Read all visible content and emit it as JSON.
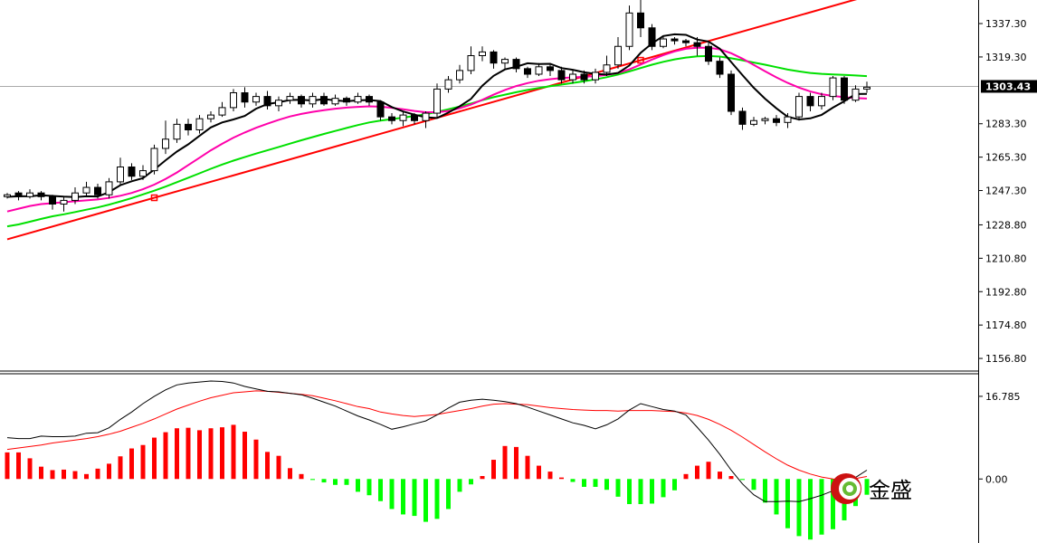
{
  "chart_data": [
    {
      "type": "candlestick",
      "title": "",
      "ylim": [
        1150,
        1350
      ],
      "yticks": [
        "1337.30",
        "1319.30",
        "1283.30",
        "1265.30",
        "1247.30",
        "1228.80",
        "1210.80",
        "1192.80",
        "1174.80",
        "1156.80"
      ],
      "ytick_values": [
        1337.3,
        1319.3,
        1283.3,
        1265.3,
        1247.3,
        1228.8,
        1210.8,
        1192.8,
        1174.8,
        1156.8
      ],
      "current_price": {
        "label": "1303.43",
        "value": 1303.43
      },
      "candles": [
        [
          1244,
          1245,
          1243,
          1246
        ],
        [
          1246,
          1244,
          1242,
          1247
        ],
        [
          1244,
          1246,
          1243,
          1248
        ],
        [
          1246,
          1244,
          1242,
          1247
        ],
        [
          1244,
          1240,
          1237,
          1245
        ],
        [
          1240,
          1242,
          1236,
          1244
        ],
        [
          1242,
          1246,
          1240,
          1249
        ],
        [
          1246,
          1249,
          1244,
          1252
        ],
        [
          1249,
          1245,
          1243,
          1251
        ],
        [
          1245,
          1252,
          1243,
          1254
        ],
        [
          1252,
          1260,
          1250,
          1265
        ],
        [
          1260,
          1255,
          1253,
          1262
        ],
        [
          1255,
          1258,
          1253,
          1261
        ],
        [
          1258,
          1270,
          1256,
          1272
        ],
        [
          1270,
          1275,
          1267,
          1285
        ],
        [
          1275,
          1283,
          1273,
          1286
        ],
        [
          1283,
          1280,
          1277,
          1286
        ],
        [
          1280,
          1286,
          1278,
          1288
        ],
        [
          1286,
          1288,
          1284,
          1290
        ],
        [
          1288,
          1292,
          1287,
          1295
        ],
        [
          1292,
          1300,
          1290,
          1302
        ],
        [
          1300,
          1295,
          1292,
          1303
        ],
        [
          1295,
          1298,
          1293,
          1300
        ],
        [
          1298,
          1293,
          1291,
          1301
        ],
        [
          1293,
          1296,
          1290,
          1298
        ],
        [
          1296,
          1298,
          1294,
          1300
        ],
        [
          1298,
          1294,
          1292,
          1299
        ],
        [
          1294,
          1298,
          1292,
          1300
        ],
        [
          1298,
          1294,
          1293,
          1300
        ],
        [
          1294,
          1297,
          1293,
          1299
        ],
        [
          1297,
          1295,
          1293,
          1298
        ],
        [
          1295,
          1298,
          1294,
          1300
        ],
        [
          1298,
          1295,
          1293,
          1299
        ],
        [
          1295,
          1287,
          1285,
          1296
        ],
        [
          1287,
          1285,
          1283,
          1289
        ],
        [
          1285,
          1288,
          1282,
          1290
        ],
        [
          1288,
          1285,
          1283,
          1289
        ],
        [
          1285,
          1289,
          1281,
          1290
        ],
        [
          1289,
          1302,
          1287,
          1305
        ],
        [
          1302,
          1307,
          1300,
          1309
        ],
        [
          1307,
          1312,
          1305,
          1315
        ],
        [
          1312,
          1320,
          1310,
          1325
        ],
        [
          1320,
          1322,
          1317,
          1325
        ],
        [
          1322,
          1316,
          1313,
          1323
        ],
        [
          1316,
          1318,
          1313,
          1319
        ],
        [
          1318,
          1313,
          1311,
          1319
        ],
        [
          1313,
          1310,
          1308,
          1314
        ],
        [
          1310,
          1314,
          1309,
          1316
        ],
        [
          1314,
          1312,
          1309,
          1316
        ],
        [
          1312,
          1307,
          1305,
          1314
        ],
        [
          1307,
          1310,
          1305,
          1312
        ],
        [
          1310,
          1307,
          1305,
          1312
        ],
        [
          1307,
          1311,
          1305,
          1313
        ],
        [
          1311,
          1315,
          1309,
          1320
        ],
        [
          1315,
          1325,
          1313,
          1330
        ],
        [
          1325,
          1343,
          1323,
          1347
        ],
        [
          1343,
          1335,
          1330,
          1350
        ],
        [
          1335,
          1325,
          1323,
          1337
        ],
        [
          1325,
          1329,
          1324,
          1331
        ],
        [
          1329,
          1328,
          1326,
          1330
        ],
        [
          1328,
          1327,
          1325,
          1329
        ],
        [
          1327,
          1325,
          1320,
          1330
        ],
        [
          1325,
          1317,
          1315,
          1328
        ],
        [
          1317,
          1310,
          1308,
          1319
        ],
        [
          1310,
          1290,
          1288,
          1312
        ],
        [
          1290,
          1283,
          1280,
          1292
        ],
        [
          1283,
          1285,
          1282,
          1287
        ],
        [
          1285,
          1286,
          1283,
          1287
        ],
        [
          1286,
          1284,
          1282,
          1288
        ],
        [
          1284,
          1287,
          1281,
          1289
        ],
        [
          1287,
          1298,
          1285,
          1300
        ],
        [
          1298,
          1293,
          1290,
          1300
        ],
        [
          1293,
          1298,
          1291,
          1300
        ],
        [
          1298,
          1308,
          1296,
          1309
        ],
        [
          1308,
          1296,
          1294,
          1309
        ],
        [
          1296,
          1302,
          1295,
          1304
        ],
        [
          1302,
          1303,
          1300,
          1306
        ]
      ],
      "ma_black": [
        1243.9,
        1244.2,
        1244.2,
        1244.8,
        1244.4,
        1244.0,
        1243.8,
        1244.2,
        1244.1,
        1246.4,
        1250.2,
        1252.3,
        1254.0,
        1258.6,
        1263.6,
        1268.3,
        1272.2,
        1276.8,
        1281.3,
        1284.0,
        1285.6,
        1287.5,
        1291.4,
        1293.9,
        1294.9,
        1296.1,
        1296.2,
        1295.8,
        1296.6,
        1295.9,
        1295.4,
        1295.9,
        1296.1,
        1295.5,
        1292.3,
        1289.9,
        1288.2,
        1286.8,
        1286.4,
        1289.3,
        1292.7,
        1296.7,
        1303.8,
        1309.1,
        1312.6,
        1314.0,
        1315.9,
        1315.5,
        1315.6,
        1313.3,
        1312.4,
        1311.0,
        1310.2,
        1309.8,
        1310.7,
        1314.7,
        1321.5,
        1326.6,
        1330.6,
        1331.5,
        1331.2,
        1328.7,
        1327.6,
        1323.7,
        1316.6,
        1309.5,
        1302.7,
        1296.8,
        1291.6,
        1287.0,
        1285.6,
        1286.2,
        1288.1,
        1292.0,
        1295.4,
        1299.3,
        1299.4
      ],
      "ma_magenta": [
        1236,
        1237.5,
        1239,
        1240,
        1240.5,
        1241,
        1241.5,
        1242,
        1242.5,
        1243.3,
        1244.5,
        1246,
        1248,
        1250.5,
        1253.5,
        1257,
        1261,
        1265,
        1269,
        1272.5,
        1275.8,
        1278.6,
        1281.1,
        1283.3,
        1285.4,
        1287.2,
        1288.6,
        1289.7,
        1290.6,
        1291.4,
        1292,
        1292.4,
        1292.7,
        1292.5,
        1291.9,
        1291.1,
        1290.2,
        1289.5,
        1289.5,
        1290.2,
        1291.6,
        1293.6,
        1296.2,
        1299,
        1301.5,
        1303.6,
        1305.2,
        1306.5,
        1307.3,
        1307.9,
        1308.3,
        1308.6,
        1309,
        1309.6,
        1310.7,
        1312.6,
        1315.2,
        1317.9,
        1320.3,
        1322.3,
        1323.7,
        1324.3,
        1324.3,
        1323.4,
        1321.3,
        1318.4,
        1315,
        1311.6,
        1308.3,
        1305.3,
        1302.8,
        1300.7,
        1299.2,
        1298.3,
        1297.6,
        1297.1,
        1296.9
      ],
      "ma_green": [
        1228,
        1229,
        1230.5,
        1232,
        1233.4,
        1234.5,
        1235.7,
        1237,
        1238.2,
        1239.7,
        1241.4,
        1243.2,
        1245.2,
        1247.2,
        1249.4,
        1251.8,
        1254.2,
        1256.6,
        1259,
        1261.3,
        1263.4,
        1265.3,
        1267.2,
        1269,
        1270.8,
        1272.6,
        1274.4,
        1276.1,
        1277.8,
        1279.4,
        1281,
        1282.6,
        1284,
        1285,
        1285.8,
        1286.6,
        1287.5,
        1288.4,
        1289.7,
        1291.1,
        1292.6,
        1294.2,
        1296,
        1297.6,
        1299,
        1300.3,
        1301.5,
        1302.6,
        1303.5,
        1304.4,
        1305.3,
        1306.2,
        1307.2,
        1308.4,
        1309.8,
        1311.5,
        1313.3,
        1315.1,
        1316.7,
        1318,
        1319,
        1319.6,
        1319.8,
        1319.5,
        1318.6,
        1317.5,
        1316.3,
        1315.1,
        1313.8,
        1312.5,
        1311.5,
        1310.7,
        1310.2,
        1309.9,
        1309.6,
        1309.3,
        1309
      ],
      "trendline": {
        "from": [
          0,
          1221
        ],
        "to": [
          76,
          1352
        ]
      },
      "trend_markers": [
        13,
        56
      ],
      "legend": []
    },
    {
      "type": "macd",
      "ylim": [
        -13,
        21
      ],
      "yticks": [
        "16.785",
        "0.00"
      ],
      "ytick_values": [
        16.785,
        0
      ],
      "histogram": [
        5.4,
        5.4,
        4.2,
        2.5,
        1.8,
        1.9,
        1.6,
        1.0,
        2.1,
        3.1,
        4.6,
        6.2,
        6.9,
        8.4,
        9.5,
        10.3,
        10.4,
        9.9,
        10.3,
        10.5,
        11.0,
        9.6,
        8.0,
        5.5,
        4.7,
        2.2,
        1.0,
        -0.2,
        -0.7,
        -1.2,
        -1.2,
        -2.6,
        -3.3,
        -4.5,
        -6.1,
        -7.2,
        -7.5,
        -8.7,
        -8.1,
        -6.1,
        -2.6,
        -1.1,
        0.6,
        3.9,
        6.7,
        6.5,
        4.7,
        2.7,
        1.5,
        0.3,
        -0.6,
        -1.6,
        -1.6,
        -2.2,
        -3.6,
        -5.1,
        -5.1,
        -5.0,
        -3.7,
        -2.3,
        1.0,
        2.7,
        3.5,
        1.5,
        0.6,
        -0.2,
        -2.2,
        -4.8,
        -7.2,
        -10.0,
        -11.6,
        -12.3,
        -11.3,
        -10.2,
        -8.4,
        -5.5,
        -3.2
      ],
      "macd_line": [
        8.4,
        8.2,
        8.2,
        8.7,
        8.6,
        8.6,
        8.7,
        9.3,
        9.4,
        10.4,
        12.1,
        13.6,
        15.3,
        16.8,
        18.1,
        19.1,
        19.5,
        19.7,
        19.9,
        19.8,
        19.5,
        18.8,
        18.3,
        17.8,
        17.7,
        17.4,
        17.1,
        16.4,
        15.6,
        14.8,
        13.8,
        12.8,
        12.0,
        11.1,
        10.1,
        10.6,
        11.2,
        11.8,
        13.0,
        14.4,
        15.6,
        16.0,
        16.2,
        16.0,
        15.7,
        15.3,
        14.6,
        13.8,
        13.0,
        12.2,
        11.4,
        10.9,
        10.2,
        11.0,
        12.2,
        14.0,
        15.3,
        14.7,
        14.1,
        13.8,
        13.0,
        10.5,
        7.9,
        5.0,
        1.8,
        -1.0,
        -3.2,
        -4.6,
        -4.6,
        -4.5,
        -4.6,
        -4.0,
        -3.3,
        -2.4,
        -1.2,
        0.3,
        1.8
      ],
      "signal_line": [
        6.0,
        6.3,
        6.6,
        6.9,
        7.3,
        7.6,
        7.9,
        8.2,
        8.6,
        9.1,
        9.7,
        10.5,
        11.3,
        12.2,
        13.2,
        14.2,
        15.0,
        15.8,
        16.5,
        17.0,
        17.5,
        17.7,
        17.9,
        17.8,
        17.6,
        17.4,
        17.2,
        16.9,
        16.4,
        15.9,
        15.3,
        14.7,
        14.3,
        13.6,
        13.2,
        12.9,
        12.7,
        12.9,
        13.1,
        13.5,
        13.9,
        14.3,
        14.8,
        15.2,
        15.3,
        15.2,
        15.1,
        14.8,
        14.5,
        14.3,
        14.1,
        14.0,
        13.9,
        13.9,
        13.8,
        13.9,
        13.9,
        13.9,
        13.8,
        13.7,
        13.4,
        12.9,
        12.1,
        11.1,
        9.9,
        8.5,
        7.0,
        5.5,
        4.1,
        2.8,
        1.8,
        1.0,
        0.4,
        0.0,
        -0.1,
        0.1,
        0.5
      ],
      "legend": []
    }
  ],
  "logo": {
    "brand_text": "金盛"
  },
  "colors": {
    "up_hist": "#ff0000",
    "down_hist": "#00ff00",
    "macd_line": "#000000",
    "signal_line": "#ff0000",
    "ma_black": "#000000",
    "ma_magenta": "#ff00aa",
    "ma_green": "#00e000",
    "trend": "#ff0000",
    "hline": "#aaaaaa"
  }
}
